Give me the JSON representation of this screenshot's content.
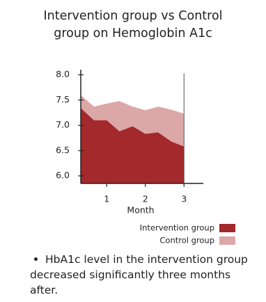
{
  "chart_data": {
    "type": "area",
    "title": "Intervention group vs Control group on Hemoglobin A1c",
    "x_label": "Month",
    "x": [
      0.33,
      0.67,
      1,
      1.33,
      1.67,
      2,
      2.33,
      2.67,
      3
    ],
    "series": [
      {
        "name": "Intervention group",
        "color": "#a3292c",
        "values": [
          7.34,
          7.1,
          7.1,
          6.88,
          6.98,
          6.83,
          6.86,
          6.68,
          6.58
        ]
      },
      {
        "name": "Control group",
        "color": "#dba7a7",
        "values": [
          7.6,
          7.37,
          7.43,
          7.48,
          7.37,
          7.3,
          7.37,
          7.31,
          7.23
        ]
      }
    ],
    "xlim": [
      0.33,
      3.5
    ],
    "xticks": [
      1,
      2,
      3
    ],
    "ylim": [
      5.85,
      8.1
    ],
    "yticks": [
      {
        "value": 6,
        "label": "6.0"
      },
      {
        "value": 6.5,
        "label": "6.5"
      },
      {
        "value": 7,
        "label": "7.0"
      },
      {
        "value": 7.5,
        "label": "7.5"
      },
      {
        "value": 8,
        "label": "8.0"
      }
    ],
    "legend": "bottom-right",
    "note": "HbA1c level in the intervention group decreased significantly three months after."
  }
}
